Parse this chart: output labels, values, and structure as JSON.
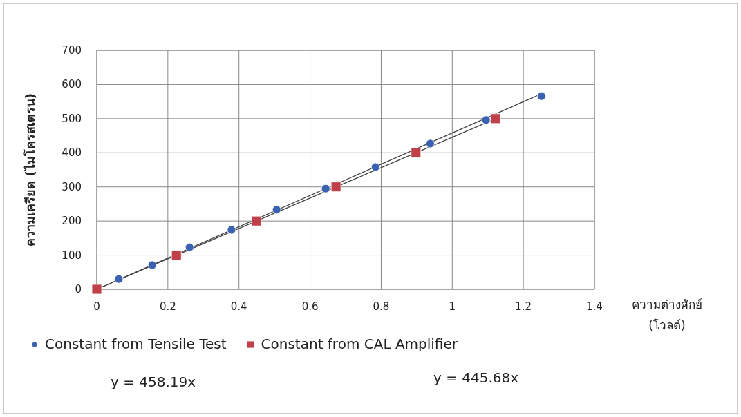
{
  "chart_data": {
    "type": "scatter",
    "xlabel": "ความต่างศักย์ (โวลต์)",
    "ylabel": "ความเครียด (ไมโครสเตรน)",
    "xlim": [
      0,
      1.4
    ],
    "xticks": [
      0,
      0.2,
      0.4,
      0.6,
      0.8,
      1,
      1.2,
      1.4
    ],
    "ylim": [
      0,
      700
    ],
    "yticks": [
      0,
      100,
      200,
      300,
      400,
      500,
      600,
      700
    ],
    "grid": true,
    "legend": "bottom",
    "series": [
      {
        "type": "line",
        "x": [
          0,
          1.251
        ],
        "values": [
          0,
          573
        ],
        "color": "#404040",
        "marker": "none"
      },
      {
        "type": "line",
        "x": [
          0,
          1.12
        ],
        "values": [
          0,
          499
        ],
        "color": "#404040",
        "marker": "none"
      },
      {
        "name": "Constant from Tensile Test",
        "color": "#3a62b0",
        "marker": "circle",
        "x": [
          0.062,
          0.156,
          0.261,
          0.379,
          0.506,
          0.644,
          0.784,
          0.938,
          1.095,
          1.251
        ],
        "values": [
          30,
          71,
          123,
          174,
          233,
          295,
          358,
          427,
          496,
          566
        ]
      },
      {
        "name": "Constant from CAL  Amplifier",
        "color": "#c0404a",
        "marker": "square",
        "x": [
          0,
          0.224,
          0.449,
          0.673,
          0.898,
          1.122
        ],
        "values": [
          0,
          100,
          200,
          300,
          400,
          500
        ]
      }
    ],
    "annotations": [
      "y = 458.19x",
      "y = 445.68x"
    ]
  }
}
